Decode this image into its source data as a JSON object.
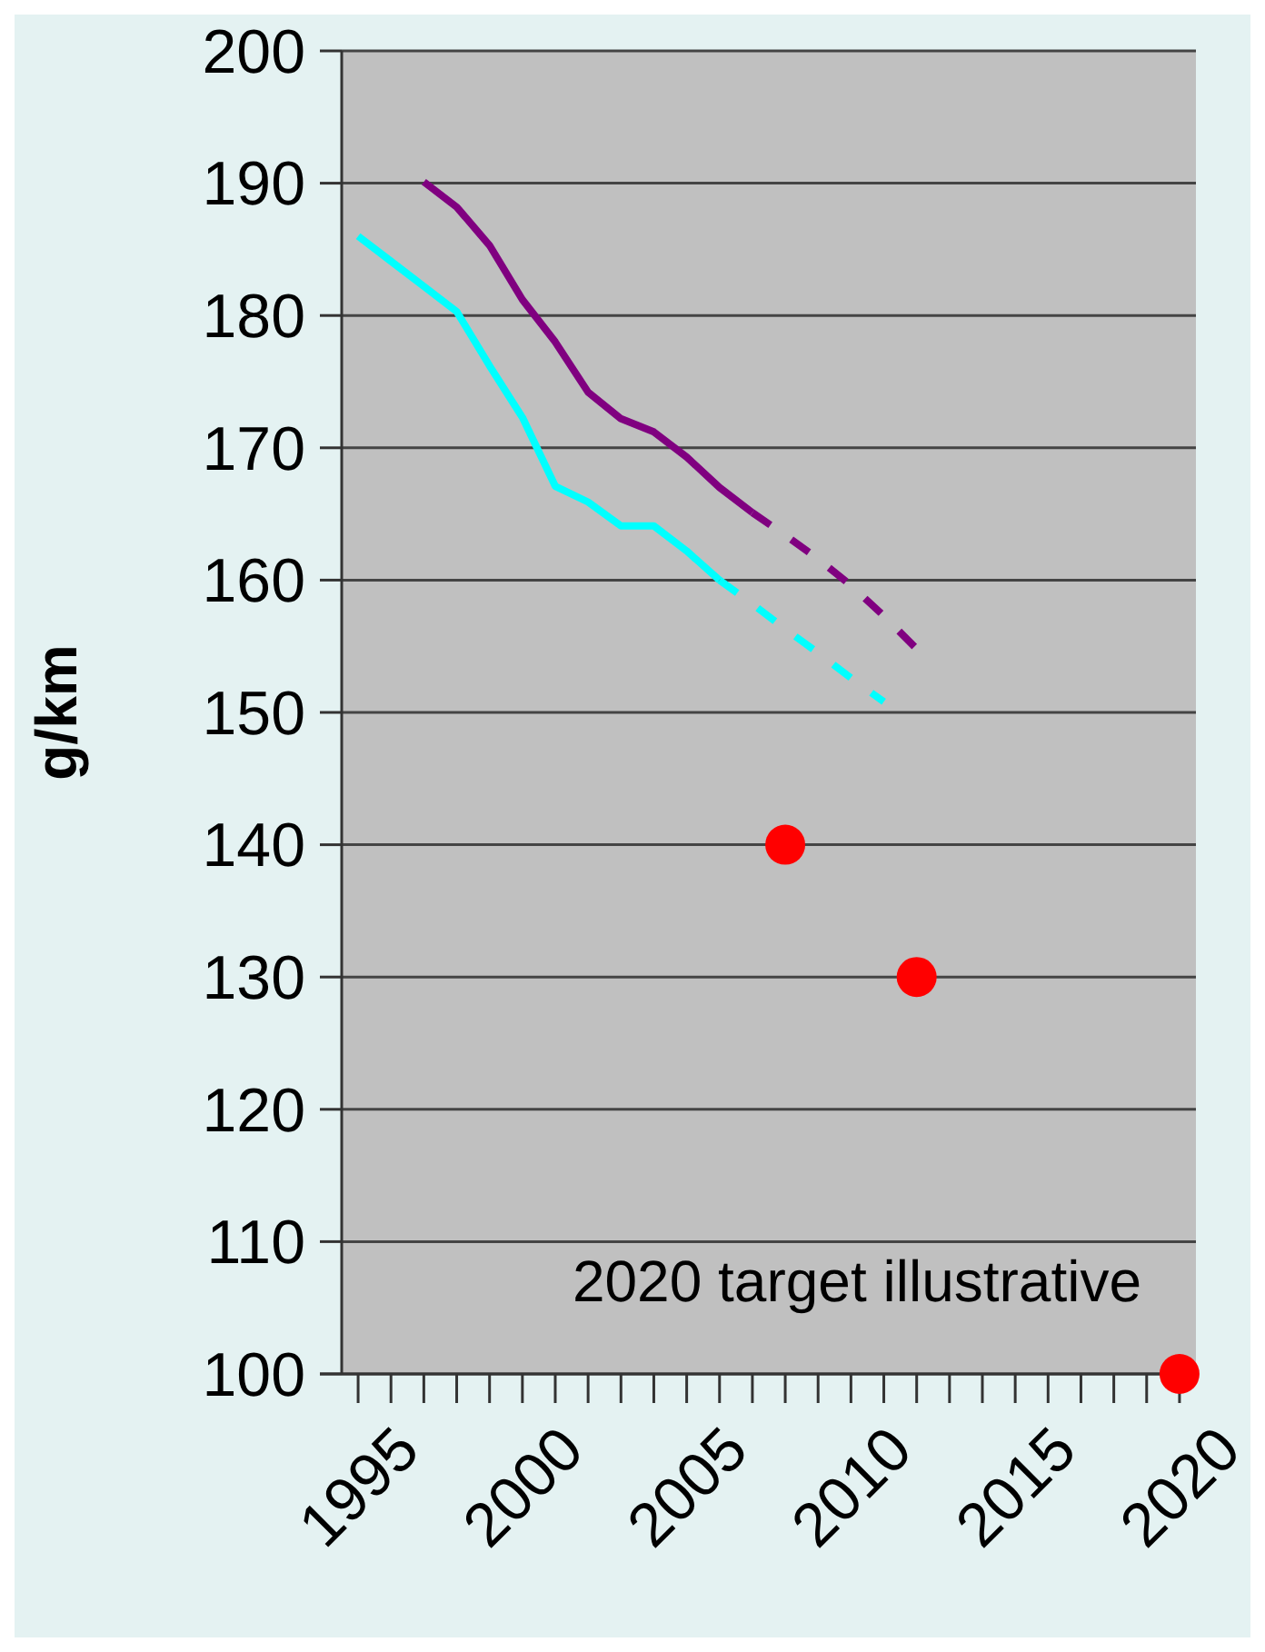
{
  "chart_data": {
    "type": "line",
    "ylabel": "g/km",
    "categories": [
      "1995",
      null,
      null,
      null,
      null,
      "2000",
      null,
      null,
      null,
      null,
      "2005",
      null,
      null,
      null,
      null,
      "2010",
      null,
      null,
      null,
      null,
      "2015",
      null,
      null,
      null,
      null,
      "2020"
    ],
    "series": [
      {
        "color": "#800080",
        "line_style": "solid",
        "values": [
          null,
          null,
          190.1,
          188.2,
          185.3,
          181.2,
          178.0,
          174.2,
          172.2,
          171.2,
          169.3,
          167.0,
          165.1,
          null,
          null,
          null,
          null,
          null,
          null,
          null,
          null,
          null,
          null,
          null,
          null,
          null
        ]
      },
      {
        "color": "#800080",
        "line_style": "dashed",
        "values": [
          null,
          null,
          null,
          null,
          null,
          null,
          null,
          null,
          null,
          null,
          null,
          null,
          165.1,
          163.4,
          161.6,
          159.6,
          157.3,
          154.8,
          null,
          null,
          null,
          null,
          null,
          null,
          null,
          null
        ]
      },
      {
        "color": "#00ffff",
        "line_style": "solid",
        "values": [
          186.0,
          184.1,
          182.2,
          180.3,
          176.2,
          172.3,
          167.1,
          165.9,
          164.1,
          164.1,
          162.2,
          160.0,
          null,
          null,
          null,
          null,
          null,
          null,
          null,
          null,
          null,
          null,
          null,
          null,
          null,
          null
        ]
      },
      {
        "color": "#00ffff",
        "line_style": "dashed",
        "values": [
          null,
          null,
          null,
          null,
          null,
          null,
          null,
          null,
          null,
          null,
          null,
          160.0,
          158.2,
          156.3,
          154.5,
          152.6,
          150.8,
          null,
          null,
          null,
          null,
          null,
          null,
          null,
          null,
          null
        ]
      },
      {
        "type": "scatter",
        "color": "#ff0000",
        "marker": "circle",
        "values": [
          null,
          null,
          null,
          null,
          null,
          null,
          null,
          null,
          null,
          null,
          null,
          null,
          null,
          140,
          null,
          null,
          null,
          130,
          null,
          null,
          null,
          null,
          null,
          null,
          null,
          100
        ]
      }
    ],
    "ylim": [
      100,
      200
    ],
    "yticks": [
      100,
      110,
      120,
      130,
      140,
      150,
      160,
      170,
      180,
      190,
      200
    ],
    "grid": "y",
    "annotations": [
      "2020 target illustrative"
    ]
  }
}
